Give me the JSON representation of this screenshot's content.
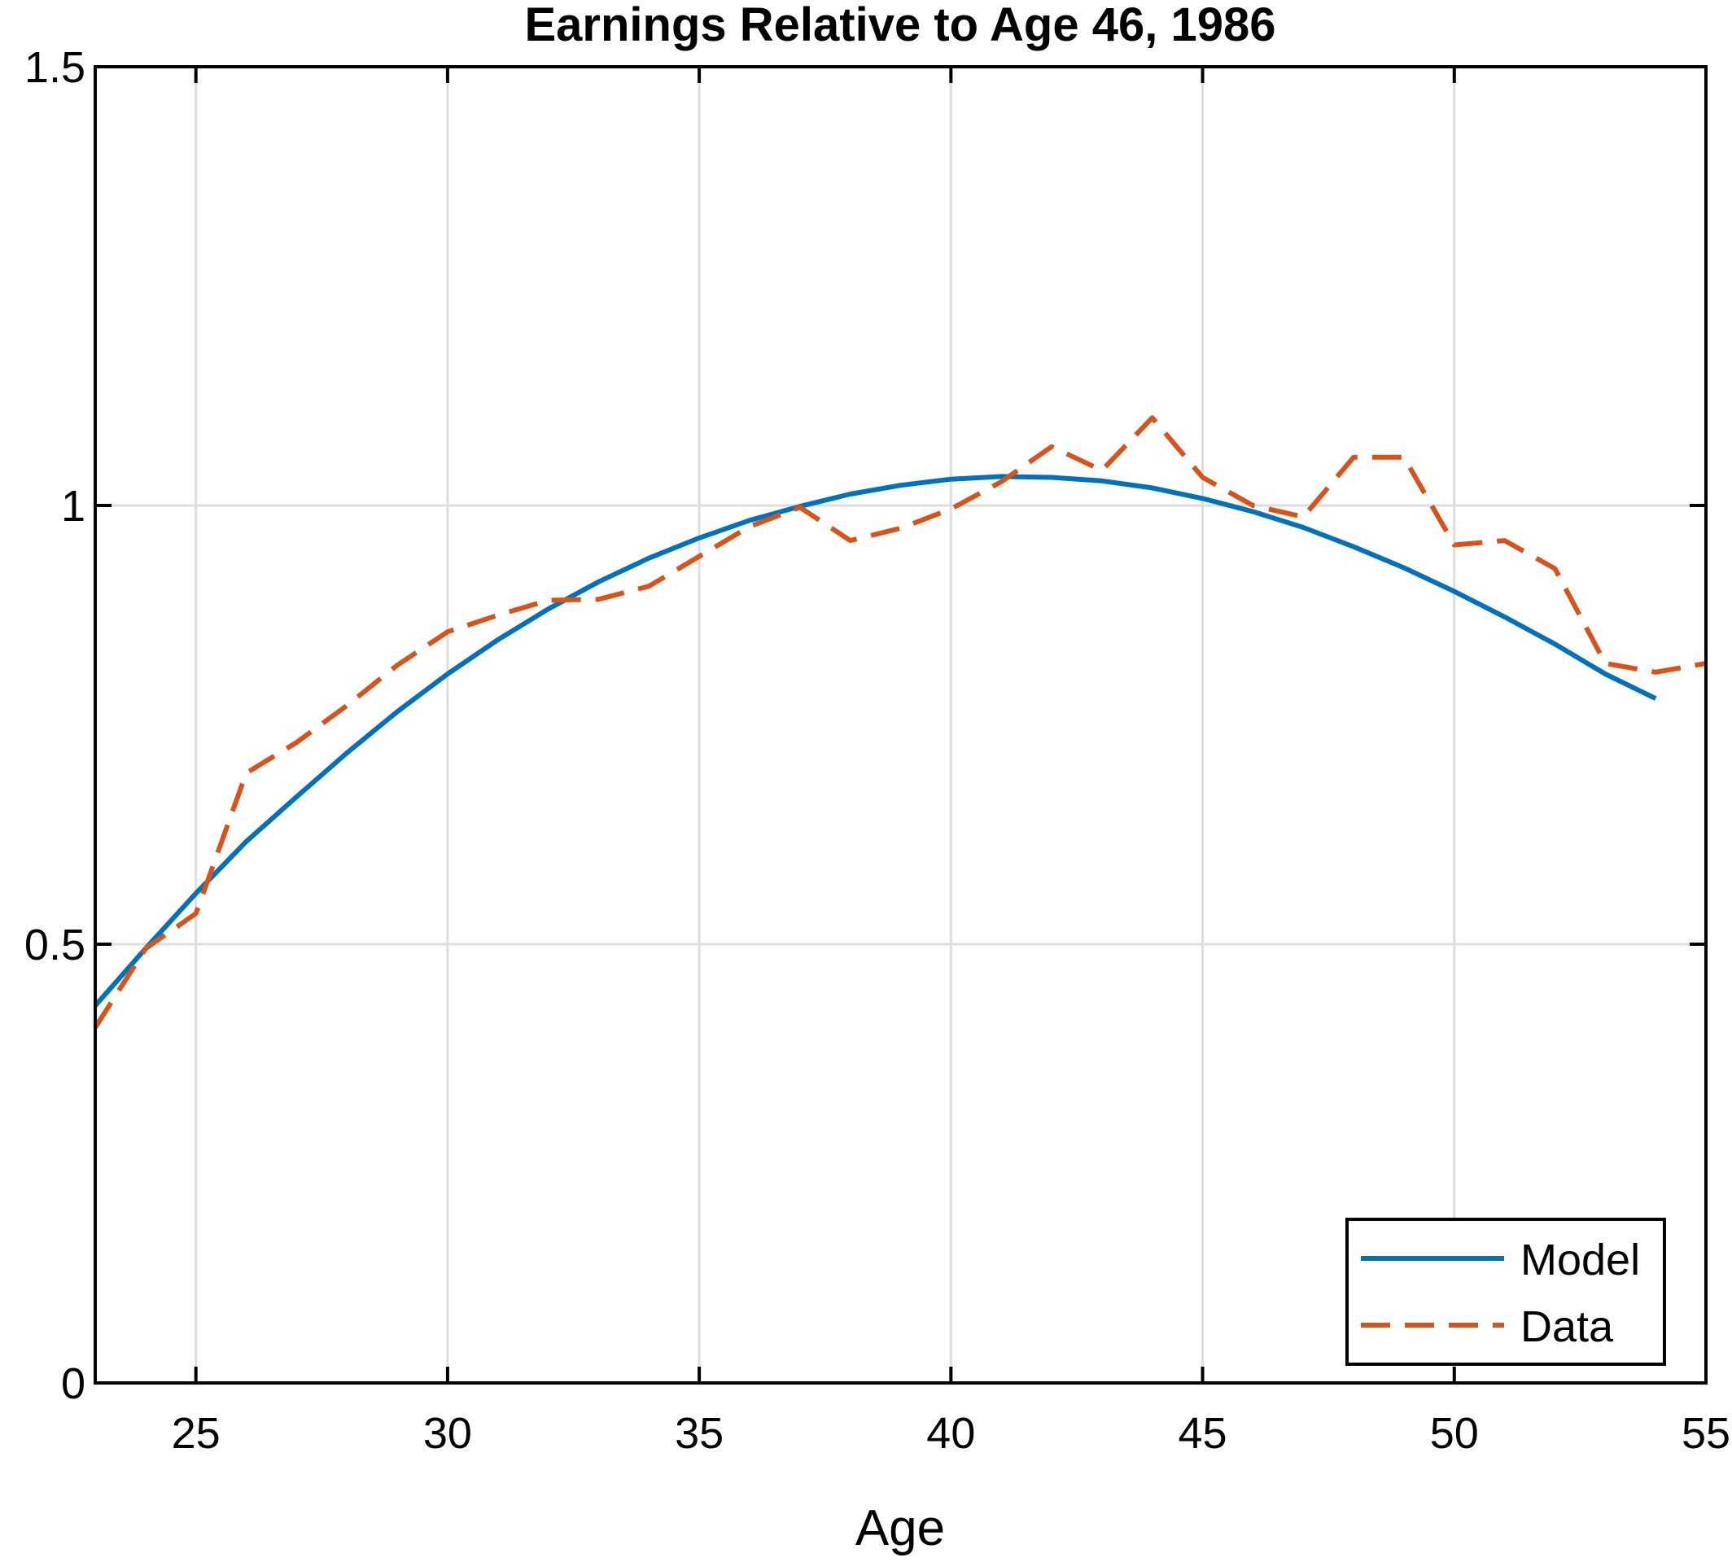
{
  "chart_data": {
    "type": "line",
    "title": "Earnings Relative to Age 46, 1986",
    "xlabel": "Age",
    "ylabel": "",
    "xlim": [
      23,
      55
    ],
    "ylim": [
      0,
      1.5
    ],
    "xticks": [
      25,
      30,
      35,
      40,
      45,
      50,
      55
    ],
    "yticks": [
      0,
      0.5,
      1,
      1.5
    ],
    "xtick_labels": [
      "25",
      "30",
      "35",
      "40",
      "45",
      "50",
      "55"
    ],
    "ytick_labels": [
      "0",
      "0.5",
      "1",
      "1.5"
    ],
    "grid": true,
    "legend_position": "bottom-right",
    "series": [
      {
        "name": "Model",
        "color": "#0072BD",
        "style": "solid",
        "x": [
          23,
          24,
          25,
          26,
          27,
          28,
          29,
          30,
          31,
          32,
          33,
          34,
          35,
          36,
          37,
          38,
          39,
          40,
          41,
          42,
          43,
          44,
          45,
          46,
          47,
          48,
          49,
          50,
          51,
          52,
          53,
          54
        ],
        "y": [
          0.43,
          0.495,
          0.558,
          0.617,
          0.668,
          0.718,
          0.765,
          0.808,
          0.847,
          0.882,
          0.913,
          0.94,
          0.963,
          0.983,
          0.999,
          1.013,
          1.023,
          1.03,
          1.033,
          1.032,
          1.028,
          1.02,
          1.008,
          0.993,
          0.975,
          0.953,
          0.929,
          0.902,
          0.873,
          0.842,
          0.808,
          0.78
        ]
      },
      {
        "name": "Data",
        "color": "#D95319",
        "style": "dashed",
        "x": [
          23,
          24,
          25,
          26,
          27,
          28,
          29,
          30,
          31,
          32,
          33,
          34,
          35,
          36,
          37,
          38,
          39,
          40,
          41,
          42,
          43,
          44,
          45,
          46,
          47,
          48,
          49,
          50,
          51,
          52,
          53,
          54,
          55
        ],
        "y": [
          0.405,
          0.495,
          0.535,
          0.695,
          0.73,
          0.772,
          0.818,
          0.856,
          0.875,
          0.892,
          0.893,
          0.908,
          0.942,
          0.976,
          0.998,
          0.96,
          0.974,
          0.996,
          1.027,
          1.067,
          1.04,
          1.1,
          1.032,
          1.0,
          0.987,
          1.055,
          1.055,
          0.955,
          0.96,
          0.928,
          0.82,
          0.81,
          0.82
        ]
      }
    ]
  }
}
